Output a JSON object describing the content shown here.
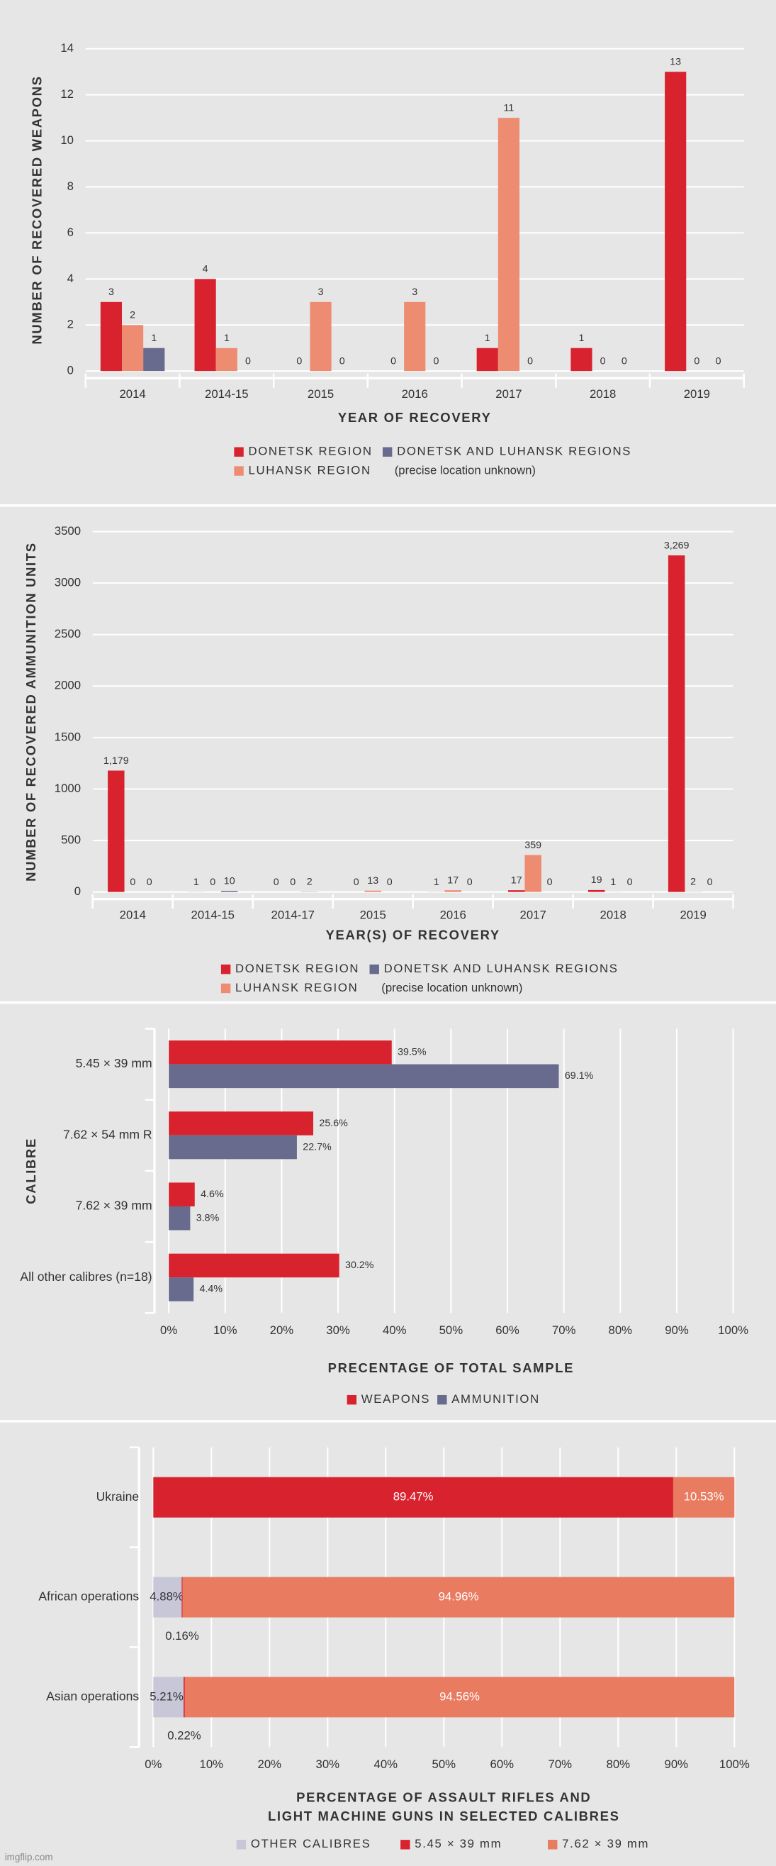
{
  "chart_data": [
    {
      "type": "bar",
      "ylabel": "NUMBER OF RECOVERED WEAPONS",
      "xlabel": "YEAR OF RECOVERY",
      "categories": [
        "2014",
        "2014-15",
        "2015",
        "2016",
        "2017",
        "2018",
        "2019"
      ],
      "series": [
        {
          "name": "DONETSK REGION",
          "color": "#d8232f",
          "values": [
            3,
            4,
            0,
            0,
            1,
            1,
            13
          ]
        },
        {
          "name": "LUHANSK REGION",
          "color": "#ee8c72",
          "values": [
            2,
            1,
            3,
            3,
            11,
            0,
            0
          ]
        },
        {
          "name": "DONETSK AND LUHANSK REGIONS",
          "color": "#686a8e",
          "values": [
            1,
            0,
            0,
            0,
            0,
            0,
            0
          ]
        }
      ],
      "legend_note": "(precise location unknown)",
      "ylim": [
        0,
        14
      ],
      "yticks": [
        0,
        2,
        4,
        6,
        8,
        10,
        12,
        14
      ],
      "grid": true
    },
    {
      "type": "bar",
      "ylabel": "NUMBER OF RECOVERED AMMUNITION UNITS",
      "xlabel": "YEAR(S) OF RECOVERY",
      "categories": [
        "2014",
        "2014-15",
        "2014-17",
        "2015",
        "2016",
        "2017",
        "2018",
        "2019"
      ],
      "series": [
        {
          "name": "DONETSK REGION",
          "color": "#d8232f",
          "values": [
            1179,
            1,
            0,
            0,
            1,
            17,
            19,
            3269
          ],
          "value_labels": [
            "1,179",
            "1",
            "0",
            "0",
            "1",
            "17",
            "19",
            "3,269"
          ]
        },
        {
          "name": "LUHANSK REGION",
          "color": "#ee8c72",
          "values": [
            0,
            0,
            0,
            13,
            17,
            359,
            1,
            2
          ]
        },
        {
          "name": "DONETSK AND LUHANSK REGIONS",
          "color": "#686a8e",
          "values": [
            0,
            10,
            2,
            0,
            0,
            0,
            0,
            0
          ]
        }
      ],
      "legend_note": "(precise location unknown)",
      "ylim": [
        0,
        3500
      ],
      "yticks": [
        0,
        500,
        1000,
        1500,
        2000,
        2500,
        3000,
        3500
      ],
      "grid": true
    },
    {
      "type": "hbar",
      "ylabel": "CALIBRE",
      "xlabel": "PRECENTAGE OF TOTAL SAMPLE",
      "categories": [
        "5.45 × 39 mm",
        "7.62 × 54 mm R",
        "7.62 × 39 mm",
        "All other calibres (n=18)"
      ],
      "series": [
        {
          "name": "WEAPONS",
          "color": "#d8232f",
          "values": [
            39.5,
            25.6,
            4.6,
            30.2
          ],
          "value_labels": [
            "39.5%",
            "25.6%",
            "4.6%",
            "30.2%"
          ]
        },
        {
          "name": "AMMUNITION",
          "color": "#686a8e",
          "values": [
            69.1,
            22.7,
            3.8,
            4.4
          ],
          "value_labels": [
            "69.1%",
            "22.7%",
            "3.8%",
            "4.4%"
          ]
        }
      ],
      "xlim": [
        0,
        100
      ],
      "xticks": [
        {
          "value": 0,
          "label": "0%"
        },
        {
          "value": 10,
          "label": "10%"
        },
        {
          "value": 20,
          "label": "20%"
        },
        {
          "value": 30,
          "label": "30%"
        },
        {
          "value": 40,
          "label": "40%"
        },
        {
          "value": 50,
          "label": "50%"
        },
        {
          "value": 60,
          "label": "60%"
        },
        {
          "value": 70,
          "label": "70%"
        },
        {
          "value": 80,
          "label": "80%"
        },
        {
          "value": 90,
          "label": "90%"
        },
        {
          "value": 100,
          "label": "100%"
        }
      ],
      "grid": true
    },
    {
      "type": "stacked_hbar",
      "xlabel": [
        "PERCENTAGE OF ASSAULT RIFLES AND",
        "LIGHT MACHINE GUNS IN SELECTED CALIBRES"
      ],
      "categories": [
        "Ukraine",
        "African operations",
        "Asian operations"
      ],
      "series": [
        {
          "name": "OTHER CALIBRES",
          "color": "#c8c7d8",
          "values": [
            0,
            4.88,
            5.21
          ],
          "value_labels": [
            null,
            "4.88%",
            "5.21%"
          ]
        },
        {
          "name": "5.45 × 39 mm",
          "color": "#d8232f",
          "values": [
            89.47,
            0.16,
            0.22
          ],
          "value_labels": [
            "89.47%",
            "0.16%",
            "0.22%"
          ]
        },
        {
          "name": "7.62 × 39 mm",
          "color": "#e87b60",
          "values": [
            10.53,
            94.96,
            94.56
          ],
          "value_labels": [
            "10.53%",
            "94.96%",
            "94.56%"
          ]
        }
      ],
      "xlim": [
        0,
        100
      ],
      "xticks": [
        {
          "value": 0,
          "label": "0%"
        },
        {
          "value": 10,
          "label": "10%"
        },
        {
          "value": 20,
          "label": "20%"
        },
        {
          "value": 30,
          "label": "30%"
        },
        {
          "value": 40,
          "label": "40%"
        },
        {
          "value": 50,
          "label": "50%"
        },
        {
          "value": 60,
          "label": "60%"
        },
        {
          "value": 70,
          "label": "70%"
        },
        {
          "value": 80,
          "label": "80%"
        },
        {
          "value": 90,
          "label": "90%"
        },
        {
          "value": 100,
          "label": "100%"
        }
      ],
      "grid": true
    }
  ],
  "watermark": "imgflip.com"
}
